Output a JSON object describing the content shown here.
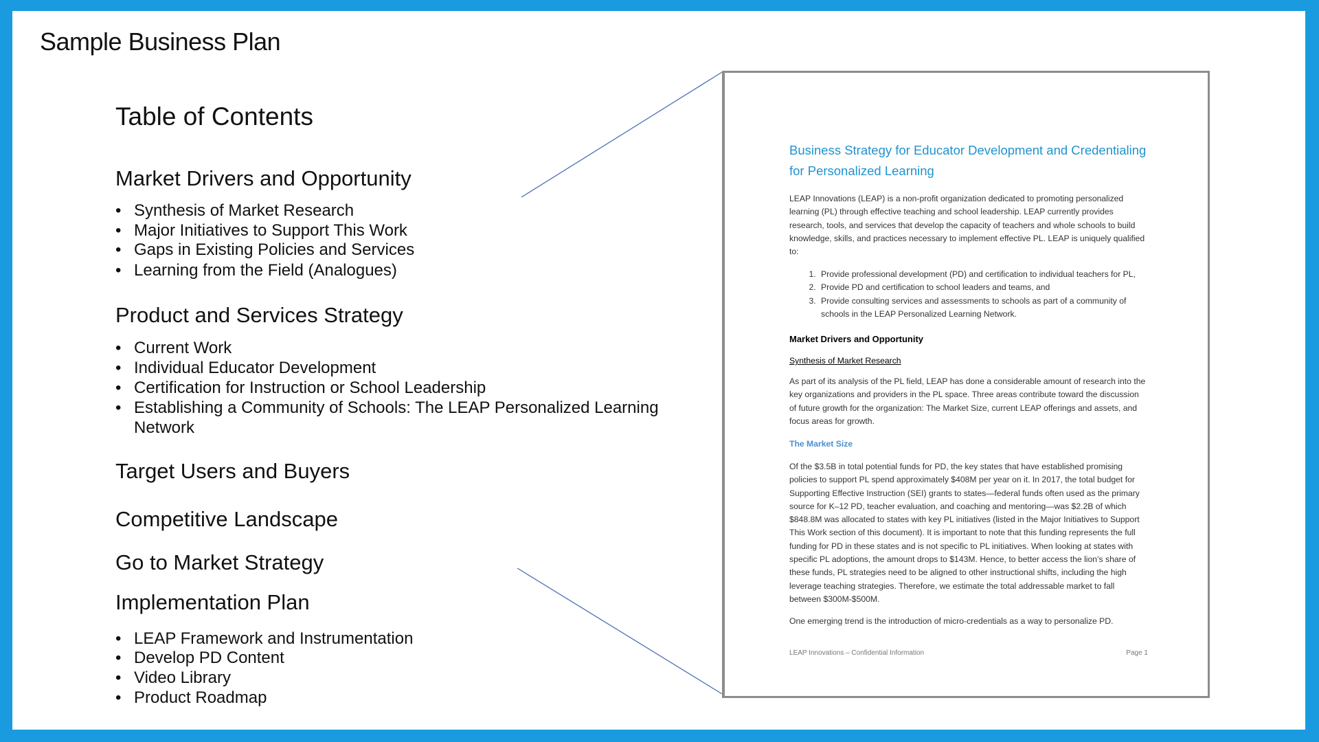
{
  "slide": {
    "title": "Sample Business Plan",
    "border_color": "#1a9be0"
  },
  "toc": {
    "title": "Table of Contents",
    "sections": [
      {
        "heading": "Market Drivers and Opportunity",
        "items": [
          "Synthesis of Market Research",
          "Major Initiatives to Support This Work",
          "Gaps in Existing Policies and Services",
          "Learning from the Field (Analogues)"
        ]
      },
      {
        "heading": "Product and Services Strategy",
        "items": [
          "Current Work",
          "Individual Educator Development",
          "Certification for Instruction or School Leadership",
          "Establishing a Community of Schools: The LEAP Personalized Learning",
          "Network"
        ]
      },
      {
        "heading": "Target Users and Buyers",
        "items": []
      },
      {
        "heading": "Competitive Landscape",
        "items": []
      },
      {
        "heading": "Go to Market Strategy",
        "items": []
      },
      {
        "heading": "Implementation Plan",
        "items": [
          "LEAP Framework and Instrumentation",
          "Develop PD Content",
          "Video Library",
          "Product Roadmap"
        ]
      }
    ],
    "bullet": "•"
  },
  "document": {
    "title": "Business Strategy for Educator Development and Credentialing for Personalized Learning",
    "intro": "LEAP Innovations (LEAP) is a non-profit organization dedicated to promoting personalized learning (PL) through effective teaching and school leadership. LEAP currently provides research, tools, and services that develop the capacity of teachers and whole schools to build knowledge, skills, and practices necessary to implement effective PL. LEAP is uniquely qualified to:",
    "list": [
      "Provide professional development (PD) and certification to individual teachers for PL,",
      "Provide PD and certification to school leaders and teams, and",
      "Provide consulting services and assessments to schools as part of a community of schools in the LEAP Personalized Learning Network."
    ],
    "heading": "Market Drivers and Opportunity",
    "subheading": "Synthesis of Market Research",
    "para1": "As part of its analysis of the PL field, LEAP has done a considerable amount of research into the key organizations and providers in the PL space. Three areas contribute toward the discussion of future growth for the organization: The Market Size, current LEAP offerings and assets, and focus areas for growth.",
    "subheading2": "The Market Size",
    "para2": "Of the $3.5B in total potential funds for PD, the key states that have established promising policies to support PL spend approximately $408M per year on it. In 2017, the total budget for Supporting Effective Instruction (SEI) grants to states—federal funds often used as the primary source for K–12 PD, teacher evaluation, and coaching and mentoring—was $2.2B of which $848.8M was allocated to states with key PL initiatives (listed in the Major Initiatives to Support This Work section of this document). It is important to note that this funding represents the full funding for PD in these states and is not specific to PL initiatives. When looking at states with specific PL adoptions, the amount drops to $143M. Hence, to better access the lion’s share of these funds, PL strategies need to be aligned to other instructional shifts, including the high leverage teaching strategies.  Therefore, we estimate the total addressable market to fall between $300M-$500M.",
    "para3": "One emerging trend is the introduction of micro-credentials as a way to personalize PD.",
    "footer_left": "LEAP Innovations – Confidential Information",
    "footer_right": "Page 1"
  }
}
